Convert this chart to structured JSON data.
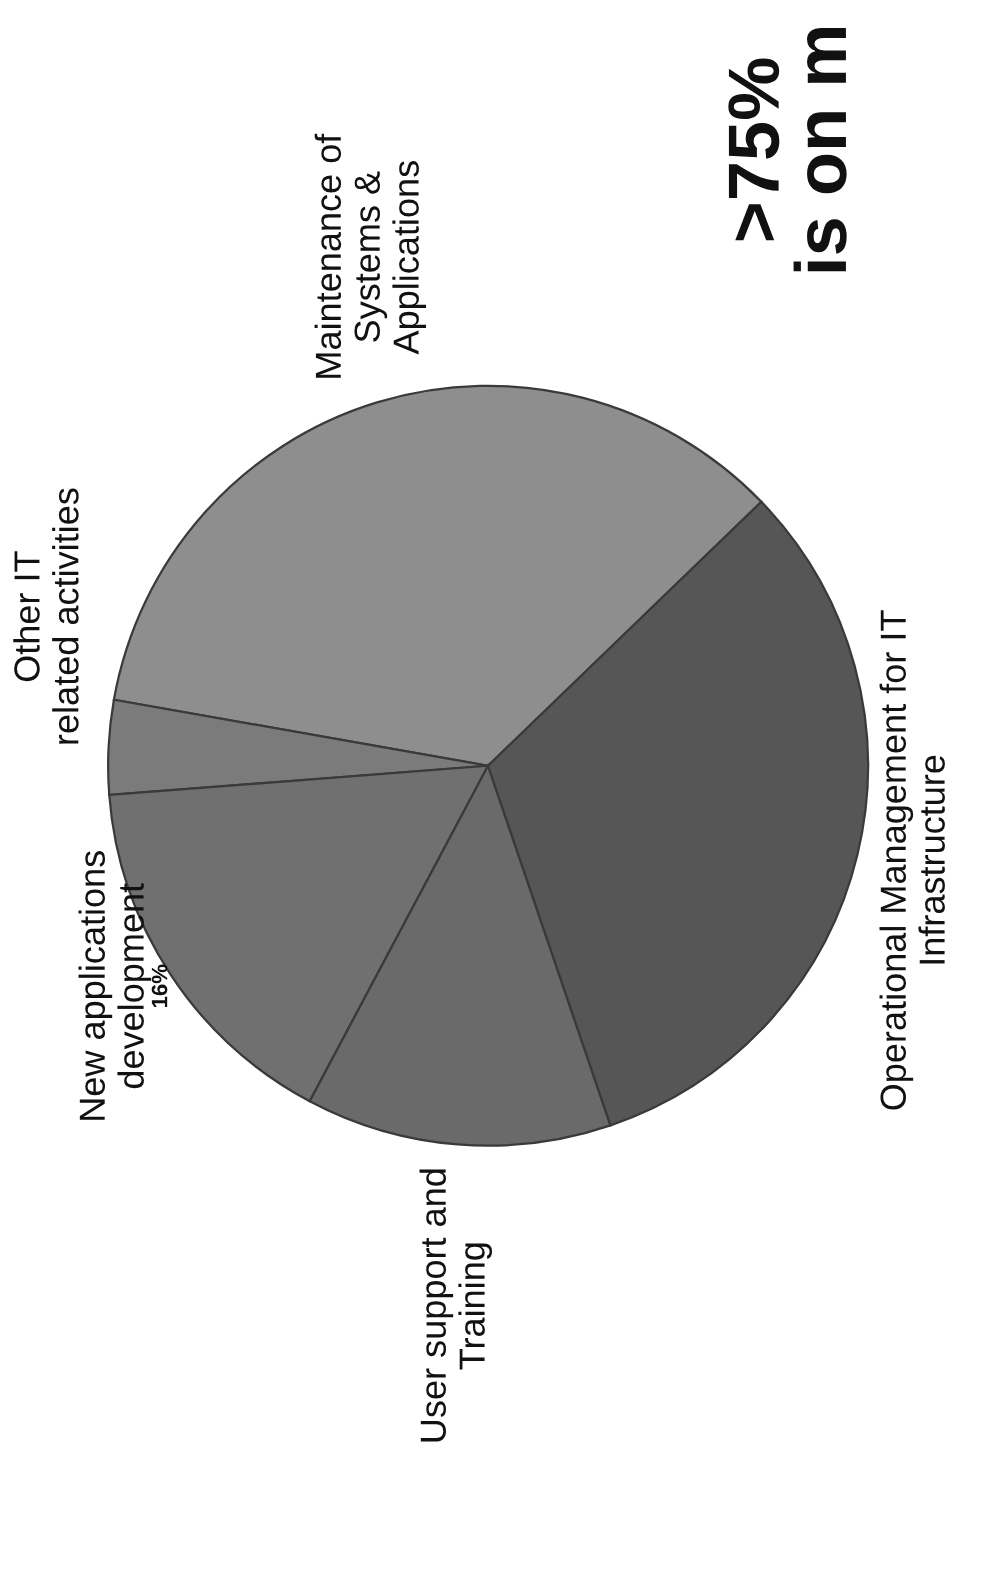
{
  "chart_data": {
    "type": "pie",
    "title": ">75%\nis on m",
    "categories": [
      "Maintenance of\nSystems &\nApplications",
      "Other IT\nrelated activities",
      "New applications\ndevelopment",
      "User support and\nTraining",
      "Operational Management for IT\nInfrastructure"
    ],
    "values": [
      35,
      4,
      16,
      13,
      32
    ],
    "value_labels": [
      null,
      null,
      "16%",
      null,
      null
    ],
    "colors": [
      "#8e8e8e",
      "#7b7b7b",
      "#707070",
      "#6a6a6a",
      "#565656"
    ],
    "legend": false
  }
}
